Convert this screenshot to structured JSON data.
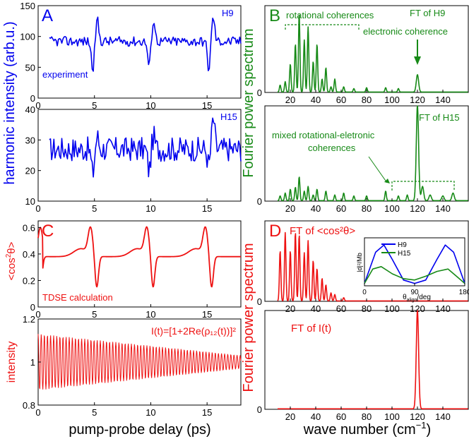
{
  "figure": {
    "left_ylabel_top": "harmonic intensity (arb.u.)",
    "right_ylabel_top": "Fourier power spectrum",
    "right_ylabel_bottom": "Fourier power spectrum",
    "xlabel_left": "pump-probe delay (ps)",
    "xlabel_right_prefix": "wave number (cm",
    "xlabel_right_sup": "−1",
    "xlabel_right_suffix": ")",
    "colors": {
      "blue": "#0000ee",
      "green": "#178a17",
      "red": "#ee1111"
    }
  },
  "chart_data": [
    {
      "id": "A1",
      "type": "line",
      "panel_letter": "A",
      "label": "H9",
      "annotation": "experiment",
      "xlim": [
        0,
        18
      ],
      "ylim": [
        0,
        150
      ],
      "xticks": [
        "0",
        "5",
        "10",
        "15"
      ],
      "yticks": [
        "0",
        "50",
        "100",
        "150"
      ],
      "series": [
        {
          "name": "H9",
          "baseline": 92,
          "features": [
            [
              5,
              -45,
              35
            ],
            [
              10,
              -40,
              35
            ],
            [
              15.3,
              -45,
              40
            ]
          ],
          "noise": 8
        }
      ]
    },
    {
      "id": "A2",
      "type": "line",
      "label": "H15",
      "xlim": [
        0,
        18
      ],
      "ylim": [
        10,
        40
      ],
      "xticks": [
        "0",
        "5",
        "10",
        "15"
      ],
      "yticks": [
        "10",
        "20",
        "30",
        "40"
      ],
      "series": [
        {
          "name": "H15",
          "baseline": 27,
          "features": [
            [
              5,
              -8,
              4
            ],
            [
              10,
              -7,
              4
            ],
            [
              15.3,
              -5,
              10
            ]
          ],
          "noise": 4
        }
      ]
    },
    {
      "id": "B1",
      "type": "line",
      "panel_letter": "B",
      "label": "FT of H9",
      "xlim": [
        0,
        160
      ],
      "ylim": [
        0,
        1
      ],
      "xticks": [
        "20",
        "40",
        "60",
        "80",
        "100",
        "120",
        "140"
      ],
      "yticks": [
        "0"
      ],
      "annotations": [
        "rotational coherences",
        "electronic coherence"
      ],
      "peaks": [
        [
          12,
          0.08
        ],
        [
          16,
          0.12
        ],
        [
          20,
          0.32
        ],
        [
          24,
          0.55
        ],
        [
          27,
          0.9
        ],
        [
          31,
          0.6
        ],
        [
          34,
          0.75
        ],
        [
          38,
          0.35
        ],
        [
          41,
          0.55
        ],
        [
          45,
          0.15
        ],
        [
          48,
          0.28
        ],
        [
          52,
          0.06
        ],
        [
          55,
          0.15
        ],
        [
          62,
          0.06
        ],
        [
          70,
          0.04
        ],
        [
          80,
          0.05
        ],
        [
          95,
          0.05
        ],
        [
          105,
          0.04
        ],
        [
          120,
          0.2
        ]
      ]
    },
    {
      "id": "B2",
      "type": "line",
      "label": "FT of H15",
      "xlim": [
        0,
        160
      ],
      "ylim": [
        0,
        1
      ],
      "xticks": [
        "20",
        "40",
        "60",
        "80",
        "100",
        "120",
        "140"
      ],
      "yticks": [
        "0"
      ],
      "annotations": [
        "mixed rotational-eletronic",
        "coherences"
      ],
      "peaks": [
        [
          12,
          0.05
        ],
        [
          16,
          0.08
        ],
        [
          20,
          0.12
        ],
        [
          24,
          0.14
        ],
        [
          27,
          0.25
        ],
        [
          31,
          0.1
        ],
        [
          34,
          0.15
        ],
        [
          38,
          0.06
        ],
        [
          41,
          0.12
        ],
        [
          48,
          0.1
        ],
        [
          55,
          0.06
        ],
        [
          62,
          0.08
        ],
        [
          70,
          0.05
        ],
        [
          80,
          0.05
        ],
        [
          95,
          0.1
        ],
        [
          105,
          0.05
        ],
        [
          112,
          0.06
        ],
        [
          120,
          1.0
        ],
        [
          124,
          0.15
        ],
        [
          130,
          0.06
        ],
        [
          140,
          0.05
        ],
        [
          148,
          0.08
        ]
      ]
    },
    {
      "id": "C1",
      "type": "line",
      "panel_letter": "C",
      "ylabel": "<cos²θ>",
      "annotation": "TDSE calculation",
      "xlim": [
        0,
        18
      ],
      "ylim": [
        0,
        0.65
      ],
      "xticks": [
        "0",
        "5",
        "10",
        "15"
      ],
      "yticks": [
        "0",
        "0.2",
        "0.4",
        "0.6"
      ],
      "series": [
        {
          "name": "<cos²θ>",
          "baseline": 0.38,
          "revivals": [
            0,
            5,
            10,
            15.2
          ],
          "amplitude": 0.22
        }
      ]
    },
    {
      "id": "C2",
      "type": "line",
      "label": "I(t)=[1+2Re(ρ₁₂(t))]²",
      "ylabel": "intensity",
      "xlim": [
        0,
        18
      ],
      "ylim": [
        0.8,
        1.2
      ],
      "xticks": [
        "0",
        "5",
        "10",
        "15"
      ],
      "yticks": [
        "0.8",
        "1",
        "1.2"
      ],
      "series": [
        {
          "name": "I(t)",
          "center": 1.0,
          "amp_start": 0.13,
          "amp_end": 0.03,
          "period_ps": 0.276
        }
      ]
    },
    {
      "id": "D1",
      "type": "line",
      "panel_letter": "D",
      "label": "FT of <cos²θ>",
      "xlim": [
        0,
        160
      ],
      "ylim": [
        0,
        1
      ],
      "xticks": [
        "20",
        "40",
        "60",
        "80",
        "100",
        "120",
        "140"
      ],
      "yticks": [
        "0"
      ],
      "peaks": [
        [
          12,
          0.62
        ],
        [
          16,
          0.85
        ],
        [
          20,
          0.62
        ],
        [
          24,
          0.85
        ],
        [
          27,
          0.82
        ],
        [
          31,
          0.6
        ],
        [
          34,
          0.75
        ],
        [
          38,
          0.5
        ],
        [
          41,
          0.4
        ],
        [
          45,
          0.28
        ],
        [
          48,
          0.2
        ],
        [
          52,
          0.1
        ],
        [
          55,
          0.08
        ],
        [
          62,
          0.04
        ]
      ]
    },
    {
      "id": "D_inset",
      "type": "line",
      "ylabel": "|d|²/Mb",
      "xlabel": "θ_align/deg",
      "xlim": [
        0,
        180
      ],
      "ylim": [
        0,
        1
      ],
      "xticks": [
        "0",
        "90",
        "180"
      ],
      "series": [
        {
          "name": "H9",
          "points": [
            [
              0,
              0.05
            ],
            [
              20,
              0.7
            ],
            [
              35,
              0.85
            ],
            [
              50,
              0.55
            ],
            [
              70,
              0.12
            ],
            [
              90,
              0.05
            ],
            [
              110,
              0.12
            ],
            [
              130,
              0.55
            ],
            [
              145,
              0.85
            ],
            [
              160,
              0.7
            ],
            [
              180,
              0.05
            ]
          ]
        },
        {
          "name": "H15",
          "points": [
            [
              0,
              0.05
            ],
            [
              15,
              0.35
            ],
            [
              30,
              0.4
            ],
            [
              50,
              0.25
            ],
            [
              70,
              0.15
            ],
            [
              90,
              0.12
            ],
            [
              110,
              0.2
            ],
            [
              130,
              0.3
            ],
            [
              150,
              0.35
            ],
            [
              165,
              0.2
            ],
            [
              180,
              0.05
            ]
          ]
        }
      ]
    },
    {
      "id": "D2",
      "type": "line",
      "label": "FT of I(t)",
      "xlim": [
        0,
        160
      ],
      "ylim": [
        0,
        1
      ],
      "xticks": [
        "20",
        "40",
        "60",
        "80",
        "100",
        "120",
        "140"
      ],
      "yticks": [
        "0"
      ],
      "peaks": [
        [
          120,
          1.0
        ]
      ]
    }
  ]
}
